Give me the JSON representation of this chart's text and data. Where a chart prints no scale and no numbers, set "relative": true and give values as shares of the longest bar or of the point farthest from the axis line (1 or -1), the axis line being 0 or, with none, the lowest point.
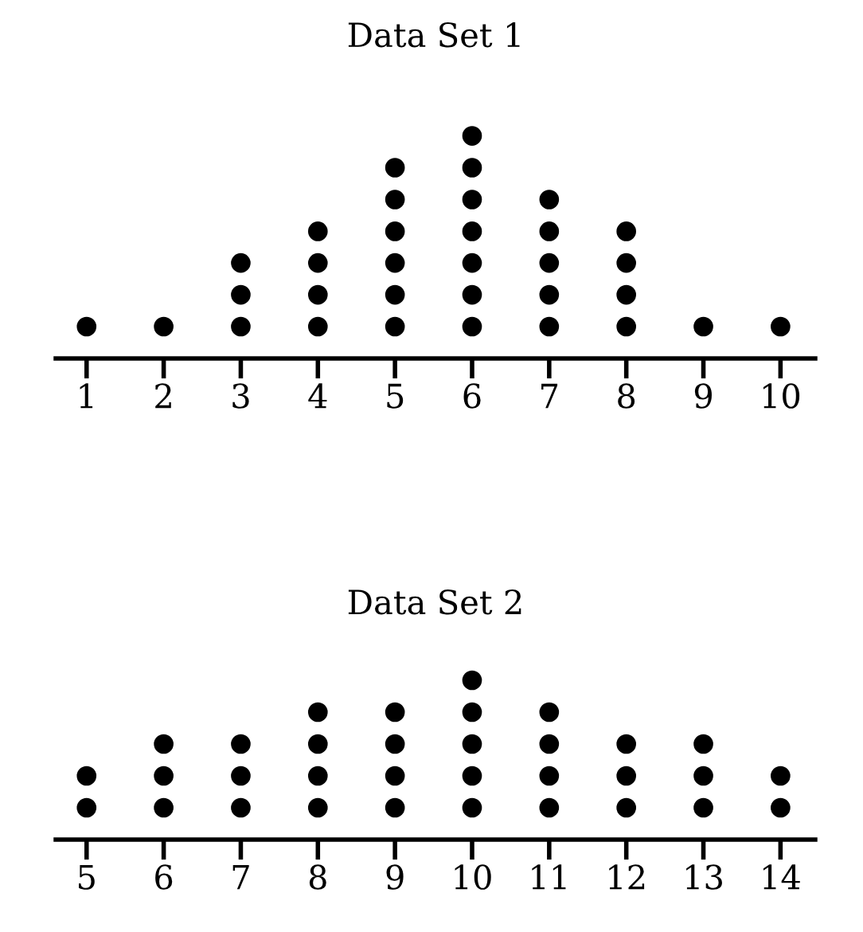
{
  "chart_data": [
    {
      "type": "scatter",
      "title": "Data Set 1",
      "marker": "circle",
      "tick_labels": "x",
      "relative": true,
      "xlim": [
        0.6,
        10.45
      ],
      "xticks": [
        1,
        2,
        3,
        4,
        5,
        6,
        7,
        8,
        9,
        10
      ],
      "series": [
        {
          "color": "#000000",
          "x": [
            1,
            2,
            3,
            3,
            3,
            4,
            4,
            4,
            4,
            5,
            5,
            5,
            5,
            5,
            5,
            6,
            6,
            6,
            6,
            6,
            6,
            6,
            7,
            7,
            7,
            7,
            7,
            8,
            8,
            8,
            8,
            9,
            10
          ],
          "values": [
            0.143,
            0.143,
            0.143,
            0.286,
            0.429,
            0.143,
            0.286,
            0.429,
            0.571,
            0.143,
            0.286,
            0.429,
            0.571,
            0.714,
            0.857,
            0.143,
            0.286,
            0.429,
            0.571,
            0.714,
            0.857,
            1,
            0.143,
            0.286,
            0.429,
            0.571,
            0.714,
            0.143,
            0.286,
            0.429,
            0.571,
            0.143,
            0.143
          ]
        }
      ]
    },
    {
      "type": "scatter",
      "title": "Data Set 2",
      "marker": "circle",
      "tick_labels": "x",
      "relative": true,
      "xlim": [
        4.6,
        14.45
      ],
      "xticks": [
        5,
        6,
        7,
        8,
        9,
        10,
        11,
        12,
        13,
        14
      ],
      "series": [
        {
          "color": "#000000",
          "x": [
            5,
            5,
            6,
            6,
            6,
            7,
            7,
            7,
            8,
            8,
            8,
            8,
            9,
            9,
            9,
            9,
            10,
            10,
            10,
            10,
            10,
            11,
            11,
            11,
            11,
            12,
            12,
            12,
            13,
            13,
            13,
            14,
            14
          ],
          "values": [
            0.2,
            0.4,
            0.2,
            0.4,
            0.6,
            0.2,
            0.4,
            0.6,
            0.2,
            0.4,
            0.6,
            0.8,
            0.2,
            0.4,
            0.6,
            0.8,
            0.2,
            0.4,
            0.6,
            0.8,
            1,
            0.2,
            0.4,
            0.6,
            0.8,
            0.2,
            0.4,
            0.6,
            0.2,
            0.4,
            0.6,
            0.2,
            0.4
          ]
        }
      ]
    }
  ]
}
